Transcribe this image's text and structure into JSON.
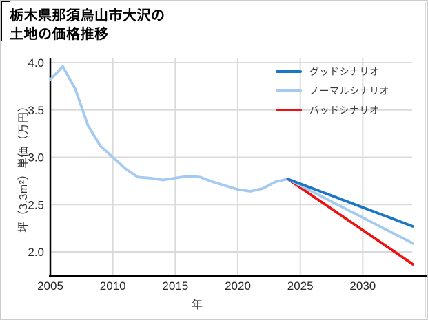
{
  "title": {
    "line1": "栃木県那須烏山市大沢の",
    "line2": "土地の価格推移"
  },
  "colors": {
    "good": "#1b76c4",
    "normal": "#a5caf0",
    "bad": "#ee1111",
    "history": "#a5caf0",
    "grid": "#dadada",
    "axis": "#000000",
    "tick_text": "#262626",
    "label_text": "#333333"
  },
  "chart_data": {
    "type": "line",
    "title": "栃木県那須烏山市大沢の土地の価格推移",
    "xlabel": "年",
    "ylabel": "坪（3.3m²）単価（万円）",
    "xlim": [
      2005,
      2035
    ],
    "ylim": [
      1.75,
      4.05
    ],
    "x_ticks": [
      2005,
      2010,
      2015,
      2020,
      2025,
      2030
    ],
    "y_ticks": [
      2.0,
      2.5,
      3.0,
      3.5,
      4.0
    ],
    "grid": true,
    "legend_position": "top-right",
    "legend": [
      "グッドシナリオ",
      "ノーマルシナリオ",
      "バッドシナリオ"
    ],
    "series": [
      {
        "id": "history",
        "label": null,
        "color": "#a5caf0",
        "x": [
          2005,
          2006,
          2007,
          2008,
          2009,
          2010,
          2011,
          2012,
          2013,
          2014,
          2015,
          2016,
          2017,
          2018,
          2019,
          2020,
          2021,
          2022,
          2023,
          2024
        ],
        "y": [
          3.82,
          3.96,
          3.72,
          3.34,
          3.12,
          3.0,
          2.88,
          2.79,
          2.78,
          2.76,
          2.78,
          2.8,
          2.79,
          2.74,
          2.7,
          2.66,
          2.64,
          2.67,
          2.74,
          2.77
        ]
      },
      {
        "id": "bad",
        "label": "バッドシナリオ",
        "color": "#ee1111",
        "x": [
          2024,
          2034
        ],
        "y": [
          2.77,
          1.87
        ]
      },
      {
        "id": "normal",
        "label": "ノーマルシナリオ",
        "color": "#a5caf0",
        "x": [
          2024,
          2034
        ],
        "y": [
          2.77,
          2.09
        ]
      },
      {
        "id": "good",
        "label": "グッドシナリオ",
        "color": "#1b76c4",
        "x": [
          2024,
          2034
        ],
        "y": [
          2.77,
          2.27
        ]
      }
    ]
  }
}
